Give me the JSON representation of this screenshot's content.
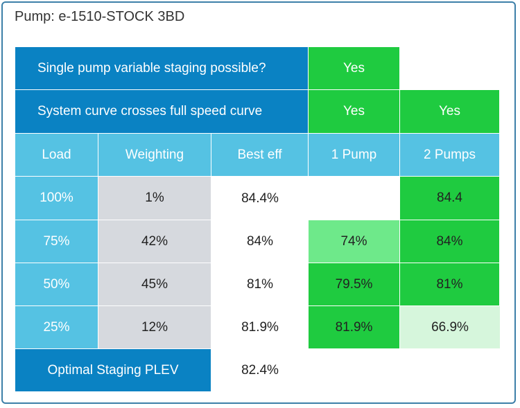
{
  "title": "Pump: e-1510-STOCK 3BD",
  "rows": {
    "staging_q": {
      "label": "Single pump variable staging possible?",
      "p1": "Yes"
    },
    "curve_q": {
      "label": "System curve crosses full speed curve",
      "p1": "Yes",
      "p2": "Yes"
    }
  },
  "headers": [
    "Load",
    "Weighting",
    "Best eff",
    "1 Pump",
    "2 Pumps"
  ],
  "data": [
    {
      "load": "100%",
      "weight": "1%",
      "best": "84.4%",
      "p1": "",
      "p2": "84.4"
    },
    {
      "load": "75%",
      "weight": "42%",
      "best": "84%",
      "p1": "74%",
      "p2": "84%"
    },
    {
      "load": "50%",
      "weight": "45%",
      "best": "81%",
      "p1": "79.5%",
      "p2": "81%"
    },
    {
      "load": "25%",
      "weight": "12%",
      "best": "81.9%",
      "p1": "81.9%",
      "p2": "66.9%"
    }
  ],
  "optimal": {
    "label": "Optimal Staging PLEV",
    "value": "82.4%"
  },
  "colors": {
    "dark_blue": "#0a82c3",
    "light_blue": "#55c2e3",
    "gray": "#d6d9de",
    "green": "#1fcb40",
    "light_green": "#6ee98a",
    "pale_green": "#d6f6dc"
  }
}
